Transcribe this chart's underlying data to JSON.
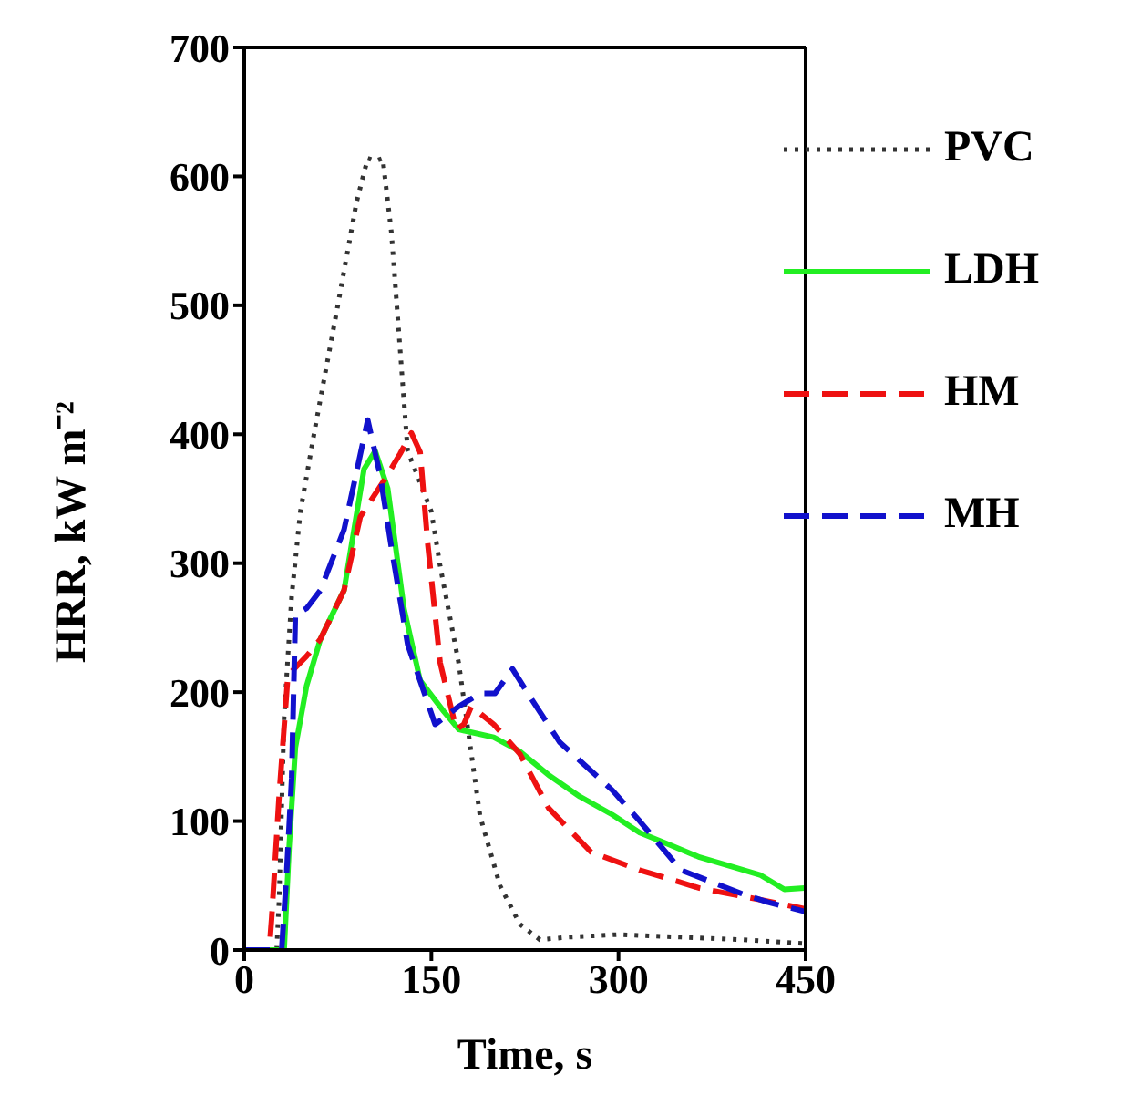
{
  "chart_data": {
    "type": "line",
    "xlabel": "Time, s",
    "ylabel": "HRR, kW m⁻²",
    "xlim": [
      0,
      450
    ],
    "xticks": [
      0,
      150,
      300,
      450
    ],
    "ylim": [
      0,
      700
    ],
    "yticks": [
      0,
      100,
      200,
      300,
      400,
      500,
      600,
      700
    ],
    "legend": "top right",
    "series": [
      {
        "name": "PVC",
        "color": "#333333",
        "line_style": "dotted",
        "x": [
          0,
          26,
          28,
          32,
          38,
          45,
          57,
          75,
          90,
          99,
          105,
          111,
          118,
          131,
          150,
          157,
          172,
          189,
          205,
          221,
          237,
          260,
          300,
          350,
          400,
          450
        ],
        "values": [
          0,
          0,
          40,
          181,
          274,
          340,
          406,
          500,
          580,
          614,
          612,
          614,
          556,
          387,
          340,
          298,
          222,
          104,
          50,
          20,
          8,
          10,
          12,
          10,
          8,
          5
        ]
      },
      {
        "name": "LDH",
        "color": "#22ee22",
        "line_style": "solid",
        "x": [
          0,
          32,
          36,
          41,
          50,
          61,
          80,
          96,
          105,
          115,
          128,
          141,
          160,
          172,
          200,
          221,
          245,
          269,
          295,
          317,
          340,
          365,
          390,
          414,
          433,
          449,
          450
        ],
        "values": [
          0,
          0,
          80,
          157,
          205,
          241,
          279,
          373,
          387,
          358,
          265,
          209,
          185,
          171,
          165,
          154,
          135,
          119,
          105,
          91,
          82,
          72,
          65,
          58,
          47,
          48,
          48
        ]
      },
      {
        "name": "HM",
        "color": "#ee1111",
        "line_style": "dashed",
        "x": [
          0,
          20,
          22,
          28,
          35,
          50,
          61,
          80,
          93,
          112,
          125,
          134,
          141,
          147,
          157,
          170,
          176,
          182,
          200,
          221,
          244,
          278,
          317,
          365,
          414,
          449
        ],
        "values": [
          0,
          0,
          25,
          120,
          213,
          228,
          241,
          279,
          336,
          364,
          385,
          401,
          386,
          316,
          223,
          171,
          175,
          189,
          175,
          152,
          110,
          76,
          62,
          48,
          39,
          32
        ]
      },
      {
        "name": "MH",
        "color": "#1111cc",
        "line_style": "dashed",
        "x": [
          0,
          30,
          34,
          38,
          41,
          50,
          61,
          80,
          99,
          109,
          118,
          131,
          153,
          172,
          189,
          201,
          215,
          230,
          253,
          295,
          317,
          350,
          398,
          420,
          449
        ],
        "values": [
          0,
          0,
          60,
          133,
          260,
          265,
          279,
          326,
          411,
          368,
          312,
          237,
          175,
          189,
          199,
          199,
          218,
          195,
          161,
          124,
          100,
          62,
          44,
          37,
          30
        ]
      }
    ]
  }
}
